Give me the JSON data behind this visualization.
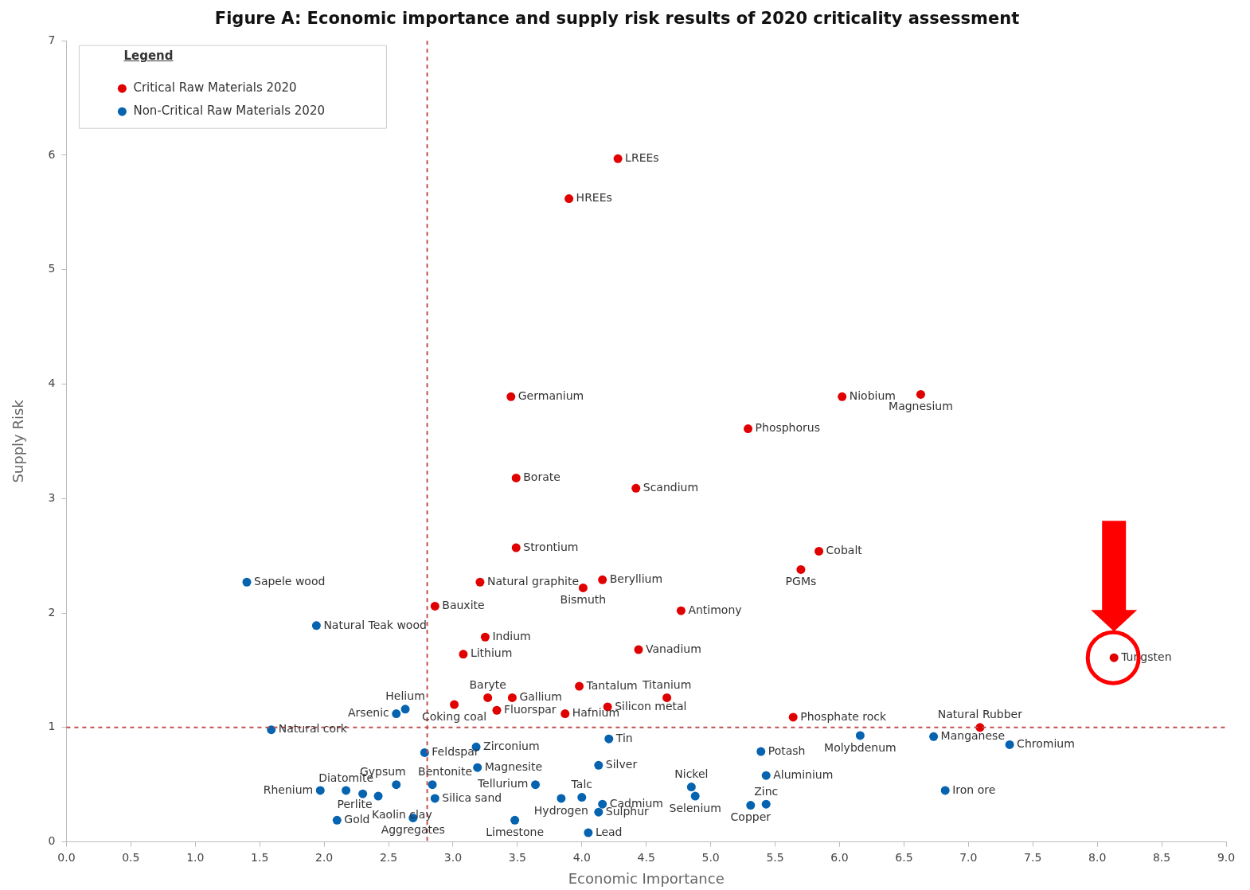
{
  "chart_data": {
    "type": "scatter",
    "title": "Figure A: Economic importance and supply risk results of 2020 criticality assessment",
    "xlabel": "Economic Importance",
    "ylabel": "Supply Risk",
    "legend_title": "Legend",
    "legend": "top left",
    "grid": false,
    "marker": "circle",
    "xlim": [
      0,
      9
    ],
    "ylim": [
      0,
      7
    ],
    "xticks": [
      {
        "value": 0,
        "label": "0.0"
      },
      {
        "value": 0.5,
        "label": "0.5"
      },
      {
        "value": 1,
        "label": "1.0"
      },
      {
        "value": 1.5,
        "label": "1.5"
      },
      {
        "value": 2,
        "label": "2.0"
      },
      {
        "value": 2.5,
        "label": "2.5"
      },
      {
        "value": 3,
        "label": "3.0"
      },
      {
        "value": 3.5,
        "label": "3.5"
      },
      {
        "value": 4,
        "label": "4.0"
      },
      {
        "value": 4.5,
        "label": "4.5"
      },
      {
        "value": 5,
        "label": "5.0"
      },
      {
        "value": 5.5,
        "label": "5.5"
      },
      {
        "value": 6,
        "label": "6.0"
      },
      {
        "value": 6.5,
        "label": "6.5"
      },
      {
        "value": 7,
        "label": "7.0"
      },
      {
        "value": 7.5,
        "label": "7.5"
      },
      {
        "value": 8,
        "label": "8.0"
      },
      {
        "value": 8.5,
        "label": "8.5"
      },
      {
        "value": 9,
        "label": "9.0"
      }
    ],
    "yticks": [
      0,
      1,
      2,
      3,
      4,
      5,
      6,
      7
    ],
    "ref_lines": [
      {
        "axis": "x",
        "value": 2.8,
        "color": "#c0504d",
        "line_style": "dashed"
      },
      {
        "axis": "y",
        "value": 1,
        "color": "#c0504d",
        "line_style": "dashed"
      }
    ],
    "series": [
      {
        "name": "Critical Raw Materials 2020",
        "color": "#e00000",
        "x": [
          4.28,
          3.9,
          3.45,
          6.02,
          6.63,
          5.29,
          3.49,
          4.42,
          3.49,
          5.84,
          5.7,
          3.21,
          4.16,
          4.01,
          2.86,
          4.77,
          3.25,
          3.08,
          4.44,
          8.13,
          3.98,
          4.66,
          3.27,
          3.46,
          3.01,
          3.34,
          4.2,
          3.87,
          5.64,
          7.09
        ],
        "values": [
          5.97,
          5.62,
          3.89,
          3.89,
          3.91,
          3.61,
          3.18,
          3.09,
          2.57,
          2.54,
          2.38,
          2.27,
          2.29,
          2.22,
          2.06,
          2.02,
          1.79,
          1.64,
          1.68,
          1.61,
          1.36,
          1.26,
          1.26,
          1.26,
          1.2,
          1.15,
          1.18,
          1.12,
          1.09,
          1.0
        ]
      },
      {
        "name": "Non-Critical Raw Materials 2020",
        "color": "#0563b0",
        "x": [
          1.4,
          1.94,
          2.63,
          2.56,
          1.59,
          2.78,
          3.18,
          3.19,
          3.64,
          2.84,
          2.86,
          2.56,
          2.42,
          2.3,
          2.17,
          1.97,
          2.1,
          2.69,
          3.48,
          3.84,
          4.0,
          4.16,
          4.13,
          4.05,
          4.21,
          4.13,
          4.85,
          4.88,
          5.39,
          5.43,
          5.43,
          5.31,
          6.16,
          6.73,
          7.32,
          6.82
        ],
        "values": [
          2.27,
          1.89,
          1.16,
          1.12,
          0.98,
          0.78,
          0.83,
          0.65,
          0.5,
          0.5,
          0.38,
          0.5,
          0.4,
          0.42,
          0.45,
          0.45,
          0.19,
          0.21,
          0.19,
          0.38,
          0.39,
          0.33,
          0.26,
          0.08,
          0.9,
          0.67,
          0.48,
          0.4,
          0.79,
          0.58,
          0.33,
          0.32,
          0.93,
          0.92,
          0.85,
          0.45
        ]
      }
    ],
    "annotations": [
      {
        "text": "LREEs",
        "x": 4.28,
        "y": 5.97
      },
      {
        "text": "HREEs",
        "x": 3.9,
        "y": 5.62
      },
      {
        "text": "Germanium",
        "x": 3.45,
        "y": 3.89
      },
      {
        "text": "Niobium",
        "x": 6.02,
        "y": 3.89
      },
      {
        "text": "Magnesium",
        "x": 6.63,
        "y": 3.91
      },
      {
        "text": "Phosphorus",
        "x": 5.29,
        "y": 3.61
      },
      {
        "text": "Borate",
        "x": 3.49,
        "y": 3.18
      },
      {
        "text": "Scandium",
        "x": 4.42,
        "y": 3.09
      },
      {
        "text": "Strontium",
        "x": 3.49,
        "y": 2.57
      },
      {
        "text": "Cobalt",
        "x": 5.84,
        "y": 2.54
      },
      {
        "text": "PGMs",
        "x": 5.7,
        "y": 2.38
      },
      {
        "text": "Natural graphite",
        "x": 3.21,
        "y": 2.27
      },
      {
        "text": "Beryllium",
        "x": 4.16,
        "y": 2.29
      },
      {
        "text": "Bismuth",
        "x": 4.01,
        "y": 2.22
      },
      {
        "text": "Bauxite",
        "x": 2.86,
        "y": 2.06
      },
      {
        "text": "Antimony",
        "x": 4.77,
        "y": 2.02
      },
      {
        "text": "Indium",
        "x": 3.25,
        "y": 1.79
      },
      {
        "text": "Lithium",
        "x": 3.08,
        "y": 1.64
      },
      {
        "text": "Vanadium",
        "x": 4.44,
        "y": 1.68
      },
      {
        "text": "Tungsten",
        "x": 8.13,
        "y": 1.61
      },
      {
        "text": "Tantalum",
        "x": 3.98,
        "y": 1.36
      },
      {
        "text": "Titanium",
        "x": 4.66,
        "y": 1.26
      },
      {
        "text": "Baryte",
        "x": 3.27,
        "y": 1.26
      },
      {
        "text": "Gallium",
        "x": 3.46,
        "y": 1.26
      },
      {
        "text": "Coking coal",
        "x": 3.01,
        "y": 1.2
      },
      {
        "text": "Fluorspar",
        "x": 3.34,
        "y": 1.15
      },
      {
        "text": "Silicon metal",
        "x": 4.2,
        "y": 1.18
      },
      {
        "text": "Hafnium",
        "x": 3.87,
        "y": 1.12
      },
      {
        "text": "Phosphate rock",
        "x": 5.64,
        "y": 1.09
      },
      {
        "text": "Natural Rubber",
        "x": 7.09,
        "y": 1.0
      },
      {
        "text": "Sapele wood",
        "x": 1.4,
        "y": 2.27
      },
      {
        "text": "Natural Teak wood",
        "x": 1.94,
        "y": 1.89
      },
      {
        "text": "Helium",
        "x": 2.63,
        "y": 1.16
      },
      {
        "text": "Arsenic",
        "x": 2.56,
        "y": 1.12
      },
      {
        "text": "Natural cork",
        "x": 1.59,
        "y": 0.98
      },
      {
        "text": "Feldspar",
        "x": 2.78,
        "y": 0.78
      },
      {
        "text": "Zirconium",
        "x": 3.18,
        "y": 0.83
      },
      {
        "text": "Magnesite",
        "x": 3.19,
        "y": 0.65
      },
      {
        "text": "Tellurium",
        "x": 3.64,
        "y": 0.5
      },
      {
        "text": "Bentonite",
        "x": 2.84,
        "y": 0.5
      },
      {
        "text": "Silica sand",
        "x": 2.86,
        "y": 0.38
      },
      {
        "text": "Gypsum",
        "x": 2.56,
        "y": 0.5
      },
      {
        "text": "Kaolin clay",
        "x": 2.42,
        "y": 0.4
      },
      {
        "text": "Perlite",
        "x": 2.3,
        "y": 0.42
      },
      {
        "text": "Diatomite",
        "x": 2.17,
        "y": 0.45
      },
      {
        "text": "Rhenium",
        "x": 1.97,
        "y": 0.45
      },
      {
        "text": "Gold",
        "x": 2.1,
        "y": 0.19
      },
      {
        "text": "Aggregates",
        "x": 2.69,
        "y": 0.21
      },
      {
        "text": "Limestone",
        "x": 3.48,
        "y": 0.19
      },
      {
        "text": "Hydrogen",
        "x": 3.84,
        "y": 0.38
      },
      {
        "text": "Talc",
        "x": 4.0,
        "y": 0.39
      },
      {
        "text": "Cadmium",
        "x": 4.16,
        "y": 0.33
      },
      {
        "text": "Sulphur",
        "x": 4.13,
        "y": 0.26
      },
      {
        "text": "Lead",
        "x": 4.05,
        "y": 0.08
      },
      {
        "text": "Tin",
        "x": 4.21,
        "y": 0.9
      },
      {
        "text": "Silver",
        "x": 4.13,
        "y": 0.67
      },
      {
        "text": "Nickel",
        "x": 4.85,
        "y": 0.48
      },
      {
        "text": "Selenium",
        "x": 4.88,
        "y": 0.4
      },
      {
        "text": "Potash",
        "x": 5.39,
        "y": 0.79
      },
      {
        "text": "Aluminium",
        "x": 5.43,
        "y": 0.58
      },
      {
        "text": "Zinc",
        "x": 5.43,
        "y": 0.33
      },
      {
        "text": "Copper",
        "x": 5.31,
        "y": 0.32
      },
      {
        "text": "Molybdenum",
        "x": 6.16,
        "y": 0.93
      },
      {
        "text": "Manganese",
        "x": 6.73,
        "y": 0.92
      },
      {
        "text": "Chromium",
        "x": 7.32,
        "y": 0.85
      },
      {
        "text": "Iron ore",
        "x": 6.82,
        "y": 0.45
      }
    ]
  }
}
